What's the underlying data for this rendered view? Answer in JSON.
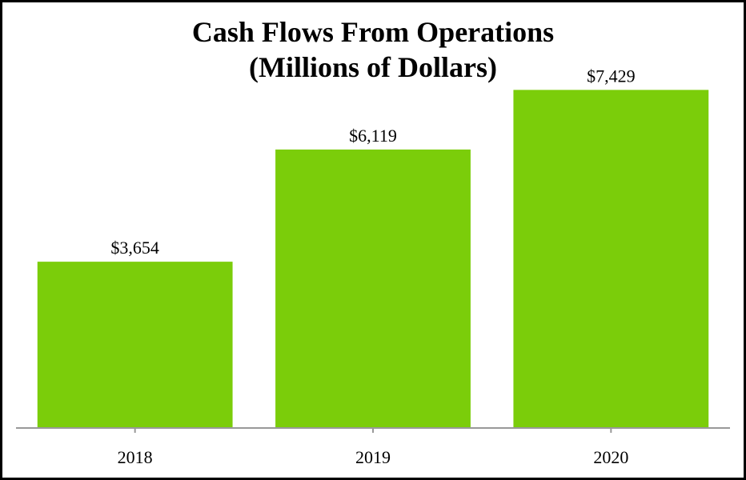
{
  "chart_data": {
    "type": "bar",
    "title": "Cash Flows From Operations",
    "subtitle": "(Millions of Dollars)",
    "categories": [
      "2018",
      "2019",
      "2020"
    ],
    "values": [
      3654,
      6119,
      7429
    ],
    "value_labels": [
      "$3,654",
      "$6,119",
      "$7,429"
    ],
    "xlabel": "",
    "ylabel": "",
    "ylim": [
      0,
      9000
    ],
    "grid": false,
    "legend": "none",
    "bar_color": "#7bcd0a",
    "axis_color": "#999999"
  }
}
